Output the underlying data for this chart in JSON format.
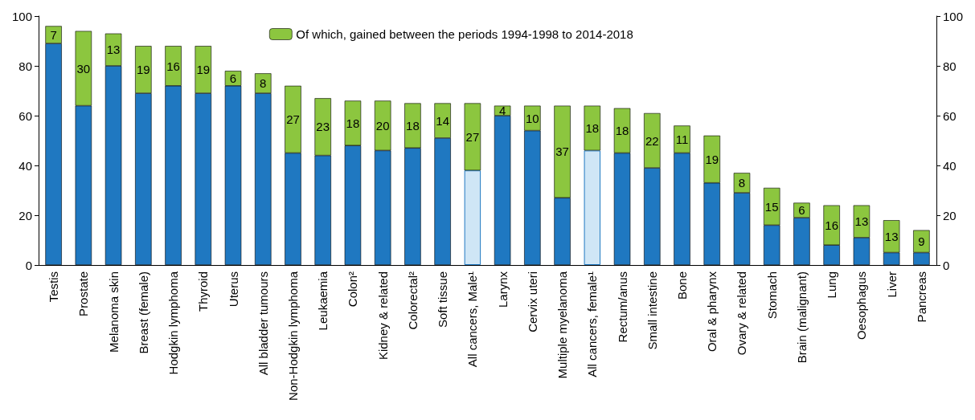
{
  "chart_data": {
    "type": "bar",
    "stacked": true,
    "categories": [
      "Testis",
      "Prostate",
      "Melanoma skin",
      "Breast (female)",
      "Hodgkin lymphoma",
      "Thyroid",
      "Uterus",
      "All bladder tumours",
      "Non-Hodgkin lymphoma",
      "Leukaemia",
      "Colon²",
      "Kidney & related",
      "Colorectal²",
      "Soft tissue",
      "All cancers, Male¹",
      "Larynx",
      "Cervix uteri",
      "Multiple myelanoma",
      "All cancers, female¹",
      "Rectum/anus",
      "Small intestine",
      "Bone",
      "Oral & pharynx",
      "Ovary & related",
      "Stomach",
      "Brain (malignant)",
      "Lung",
      "Oesophagus",
      "Liver",
      "Pancreas"
    ],
    "series": [
      {
        "color": "#1f78c1",
        "colors": [
          "#1f78c1",
          "#1f78c1",
          "#1f78c1",
          "#1f78c1",
          "#1f78c1",
          "#1f78c1",
          "#1f78c1",
          "#1f78c1",
          "#1f78c1",
          "#1f78c1",
          "#1f78c1",
          "#1f78c1",
          "#1f78c1",
          "#1f78c1",
          "#cfe6f6",
          "#1f78c1",
          "#1f78c1",
          "#1f78c1",
          "#cfe6f6",
          "#1f78c1",
          "#1f78c1",
          "#1f78c1",
          "#1f78c1",
          "#1f78c1",
          "#1f78c1",
          "#1f78c1",
          "#1f78c1",
          "#1f78c1",
          "#1f78c1",
          "#1f78c1"
        ],
        "values": [
          89,
          64,
          80,
          69,
          72,
          69,
          72,
          69,
          45,
          44,
          48,
          46,
          47,
          51,
          38,
          60,
          54,
          27,
          46,
          45,
          39,
          45,
          33,
          29,
          16,
          19,
          8,
          11,
          5,
          5
        ]
      },
      {
        "name": "Of which, gained between the periods 1994-1998 to 2014-2018",
        "color": "#8cc63f",
        "values": [
          7,
          30,
          13,
          19,
          16,
          19,
          6,
          8,
          27,
          23,
          18,
          20,
          18,
          14,
          27,
          4,
          10,
          37,
          18,
          18,
          22,
          11,
          19,
          8,
          15,
          6,
          16,
          13,
          13,
          9
        ],
        "value_labels": [
          "7",
          "30",
          "13",
          "19",
          "16",
          "19",
          "6",
          "8",
          "27",
          "23",
          "18",
          "20",
          "18",
          "14",
          "27",
          "4",
          "10",
          "37",
          "18",
          "18",
          "22",
          "11",
          "19",
          "8",
          "15",
          "6",
          "16",
          "13",
          "13",
          "9"
        ]
      }
    ],
    "ylim": [
      0,
      100
    ],
    "yticks": [
      0,
      20,
      40,
      60,
      80,
      100
    ],
    "y2lim": [
      0,
      100
    ],
    "y2ticks": [
      0,
      20,
      40,
      60,
      80,
      100
    ],
    "grid": false,
    "legend": "top"
  }
}
